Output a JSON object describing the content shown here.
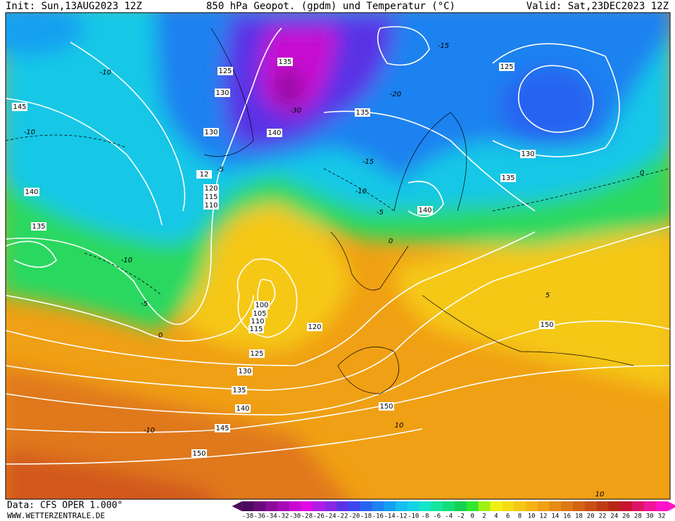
{
  "header": {
    "init": "Init: Sun,13AUG2023 12Z",
    "title": "850 hPa Geopot. (gpdm) und Temperatur (°C)",
    "valid": "Valid: Sat,23DEC2023 12Z"
  },
  "footer": {
    "data": "Data: CFS OPER 1.000°",
    "site": "WWW.WETTERZENTRALE.DE"
  },
  "geopotential_labels": [
    "135",
    "125",
    "130",
    "145",
    "130",
    "140",
    "135",
    "125",
    "130",
    "135",
    "140",
    "140",
    "135",
    "12",
    "120",
    "115",
    "110",
    "100",
    "105",
    "110",
    "115",
    "120",
    "125",
    "130",
    "135",
    "140",
    "145",
    "150",
    "150",
    "150"
  ],
  "temperature_labels": [
    "-10",
    "-10",
    "-30",
    "-20",
    "-15",
    "-15",
    "-10",
    "-5",
    "-5",
    "-10",
    "-5",
    "0",
    "0",
    "0",
    "5",
    "-10",
    "10",
    "10"
  ],
  "colorbar": {
    "labels": [
      -38,
      -36,
      -34,
      -32,
      -30,
      -28,
      -26,
      -24,
      -22,
      -20,
      -18,
      -16,
      -14,
      -12,
      -10,
      -8,
      -6,
      -4,
      -2,
      0,
      2,
      4,
      6,
      8,
      10,
      12,
      14,
      16,
      18,
      20,
      22,
      24,
      26,
      28,
      30,
      32
    ],
    "colors": [
      "#4b0a5c",
      "#6a0a7a",
      "#8a0a99",
      "#a60ab5",
      "#c80ad0",
      "#e00ae6",
      "#b01ee6",
      "#8a28e6",
      "#5a32e6",
      "#3c46f0",
      "#2864f0",
      "#1e82f0",
      "#14a0f0",
      "#14bef0",
      "#14d2e6",
      "#14e6c8",
      "#14e6a0",
      "#14dc78",
      "#14d250",
      "#32e632",
      "#a0f014",
      "#f0f014",
      "#f5dc14",
      "#f5c814",
      "#f5b414",
      "#f0a014",
      "#e68c14",
      "#dc7814",
      "#d26414",
      "#c85014",
      "#be3c14",
      "#b42814",
      "#c81432",
      "#dc1464",
      "#f01496",
      "#ff14c8"
    ]
  }
}
